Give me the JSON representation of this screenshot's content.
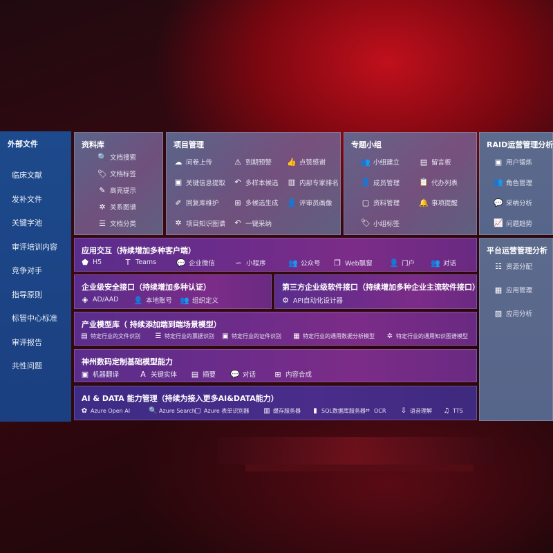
{
  "sidebar": {
    "title": "外部文件",
    "items": [
      "临床文献",
      "发补文件",
      "关键字池",
      "审评培训内容",
      "竞争对手",
      "指导原则",
      "标管中心标准",
      "审评报告",
      "共性问题"
    ]
  },
  "library": {
    "title": "资料库",
    "items": [
      {
        "icon": "doc-search",
        "glyph": "🔍",
        "label": "文档搜索"
      },
      {
        "icon": "tag",
        "glyph": "🏷",
        "label": "文档标签"
      },
      {
        "icon": "pen",
        "glyph": "✎",
        "label": "高亮提示"
      },
      {
        "icon": "graph",
        "glyph": "✲",
        "label": "关系图谱"
      },
      {
        "icon": "doc-list",
        "glyph": "☰",
        "label": "文档分类"
      }
    ]
  },
  "project": {
    "title": "项目管理",
    "items": [
      {
        "icon": "cloud-upload",
        "glyph": "☁",
        "label": "问卷上传"
      },
      {
        "icon": "alarm",
        "glyph": "⚠",
        "label": "到期预警"
      },
      {
        "icon": "thumbs-up",
        "glyph": "👍",
        "label": "点赞感谢"
      },
      {
        "icon": "key-info",
        "glyph": "▣",
        "label": "关键信息提取"
      },
      {
        "icon": "reply",
        "glyph": "↶",
        "label": "多样本候选"
      },
      {
        "icon": "ranking",
        "glyph": "▥",
        "label": "内部专家排名"
      },
      {
        "icon": "edit",
        "glyph": "✐",
        "label": "回复库维护"
      },
      {
        "icon": "puzzle",
        "glyph": "⊞",
        "label": "多候选生成"
      },
      {
        "icon": "user",
        "glyph": "👤",
        "label": "评审员画像"
      },
      {
        "icon": "graph",
        "glyph": "✲",
        "label": "项目知识图谱"
      },
      {
        "icon": "reply",
        "glyph": "↶",
        "label": "一键采纳"
      }
    ]
  },
  "group": {
    "title": "专题小组",
    "items": [
      {
        "icon": "users",
        "glyph": "👥",
        "label": "小组建立"
      },
      {
        "icon": "bbs",
        "glyph": "▤",
        "label": "留言板"
      },
      {
        "icon": "user-add",
        "glyph": "👤",
        "label": "成员管理"
      },
      {
        "icon": "clipboard",
        "glyph": "📋",
        "label": "代办列表"
      },
      {
        "icon": "folder",
        "glyph": "▢",
        "label": "资料管理"
      },
      {
        "icon": "bell",
        "glyph": "🔔",
        "label": "事项提醒"
      },
      {
        "icon": "tag",
        "glyph": "🏷",
        "label": "小组标签"
      }
    ]
  },
  "raid": {
    "title": "RAID运营管理分析",
    "items": [
      {
        "icon": "id-card",
        "glyph": "▣",
        "label": "用户锻炼"
      },
      {
        "icon": "users",
        "glyph": "👥",
        "label": "角色管理"
      },
      {
        "icon": "qa",
        "glyph": "💬",
        "label": "采纳分析"
      },
      {
        "icon": "trend",
        "glyph": "📈",
        "label": "问题趋势"
      }
    ]
  },
  "platform": {
    "title": "平台运营管理分析",
    "items": [
      {
        "icon": "list",
        "glyph": "☷",
        "label": "资源分配"
      },
      {
        "icon": "apps",
        "glyph": "▦",
        "label": "应用管理"
      },
      {
        "icon": "analytics",
        "glyph": "▧",
        "label": "应用分析"
      }
    ]
  },
  "interaction": {
    "title": "应用交互（持续增加多种客户端）",
    "items": [
      {
        "icon": "html5",
        "glyph": "⬟",
        "label": "H5"
      },
      {
        "icon": "teams",
        "glyph": "T",
        "label": "Teams"
      },
      {
        "icon": "wecom",
        "glyph": "💬",
        "label": "企业微信"
      },
      {
        "icon": "miniprogram",
        "glyph": "∽",
        "label": "小程序"
      },
      {
        "icon": "official-account",
        "glyph": "👥",
        "label": "公众号"
      },
      {
        "icon": "window",
        "glyph": "❐",
        "label": "Web飘窗"
      },
      {
        "icon": "portal",
        "glyph": "👤",
        "label": "门户"
      },
      {
        "icon": "chat",
        "glyph": "👥",
        "label": "对话"
      }
    ]
  },
  "security": {
    "title": "企业级安全接口（持续增加多种认证）",
    "items": [
      {
        "icon": "ad",
        "glyph": "◈",
        "label": "AD/AAD"
      },
      {
        "icon": "local-account",
        "glyph": "👤",
        "label": "本地账号"
      },
      {
        "icon": "org",
        "glyph": "👥",
        "label": "组织定义"
      }
    ]
  },
  "thirdparty": {
    "title": "第三方企业级软件接口（持续增加多种企业主流软件接口）",
    "items": [
      {
        "icon": "api-gear",
        "glyph": "⚙",
        "label": "API自动化设计器"
      }
    ]
  },
  "models": {
    "title": "产业模型库（ 持续添加端到端场景模型）",
    "items": [
      {
        "icon": "file",
        "glyph": "▤",
        "label": "特定行业的文件识别"
      },
      {
        "icon": "receipt",
        "glyph": "☰",
        "label": "特定行业的票据识别"
      },
      {
        "icon": "id-card",
        "glyph": "▣",
        "label": "特定行业的证件识别"
      },
      {
        "icon": "chart",
        "glyph": "▦",
        "label": "特定行业的通用数据分析模型"
      },
      {
        "icon": "graph",
        "glyph": "✲",
        "label": "特定行业的通用知识图谱模型"
      }
    ]
  },
  "base": {
    "title": "神州数码定制基础模型能力",
    "items": [
      {
        "icon": "translate",
        "glyph": "▣",
        "label": "机器翻译"
      },
      {
        "icon": "entity",
        "glyph": "A",
        "label": "关键实体"
      },
      {
        "icon": "summary",
        "glyph": "▤",
        "label": "摘要"
      },
      {
        "icon": "chat",
        "glyph": "💬",
        "label": "对话"
      },
      {
        "icon": "compose",
        "glyph": "⊞",
        "label": "内容合成"
      }
    ]
  },
  "aidata": {
    "title": "AI & DATA 能力管理（持续为接入更多AI&DATA能力）",
    "items": [
      {
        "icon": "openai",
        "glyph": "✿",
        "label": "Azure Open AI"
      },
      {
        "icon": "search",
        "glyph": "🔍",
        "label": "Azure Search"
      },
      {
        "icon": "form",
        "glyph": "▢",
        "label": "Azure 表单识别器"
      },
      {
        "icon": "cache",
        "glyph": "▥",
        "label": "缓存服务器"
      },
      {
        "icon": "sql",
        "glyph": "▮",
        "label": "SQL数据库服务器"
      },
      {
        "icon": "ocr",
        "glyph": "⌗",
        "label": "OCR"
      },
      {
        "icon": "speech",
        "glyph": "⇩",
        "label": "语音理解"
      },
      {
        "icon": "tts",
        "glyph": "♫",
        "label": "TTS"
      }
    ]
  }
}
